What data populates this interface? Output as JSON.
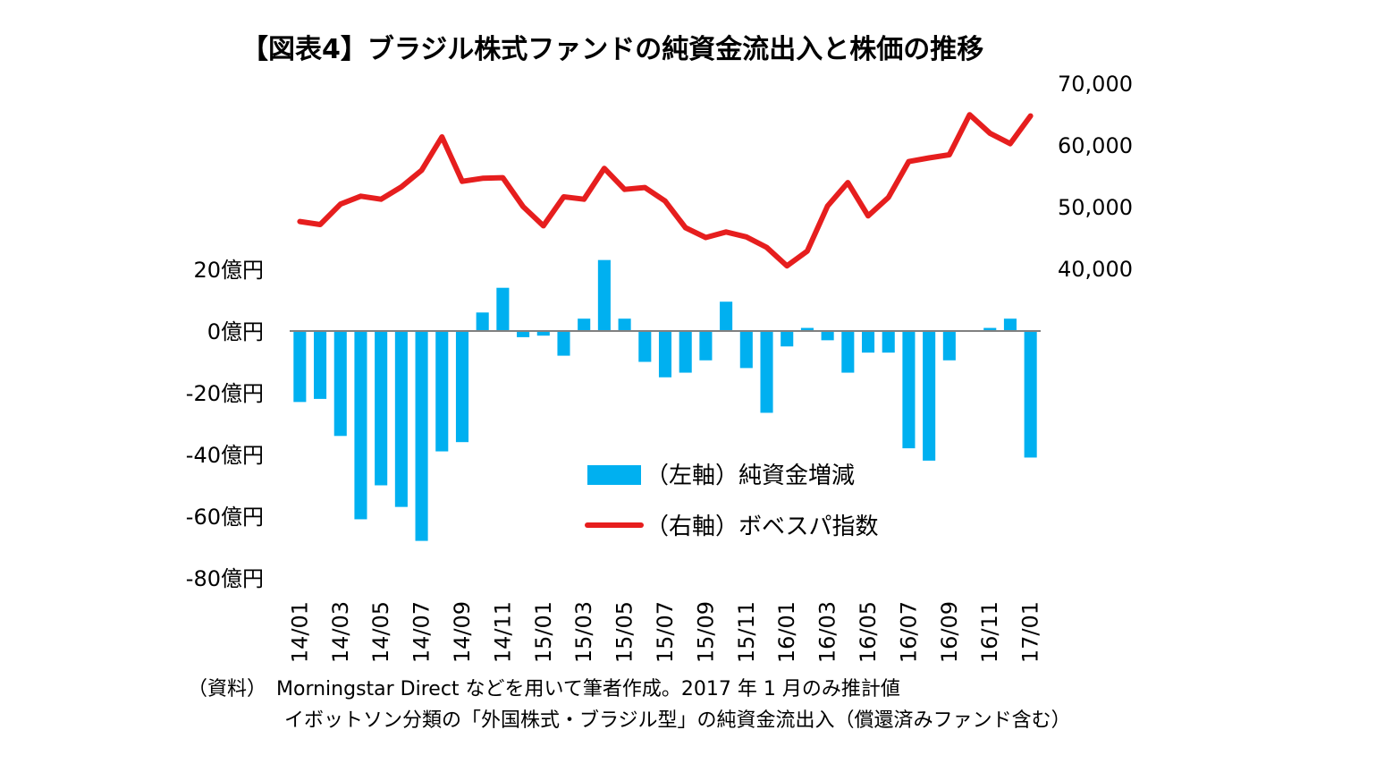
{
  "title": "【図表4】ブラジル株式ファンドの純資金流出入と株価の推移",
  "notes": [
    "（資料）　Morningstar Direct などを用いて筆者作成。2017 年 1 月のみ推計値",
    "イボットソン分類の「外国株式・ブラジル型」の純資金流出入（償還済みファンド含む）"
  ],
  "chart_data": {
    "type": "bar+line",
    "categories": [
      "14/01",
      "14/02",
      "14/03",
      "14/04",
      "14/05",
      "14/06",
      "14/07",
      "14/08",
      "14/09",
      "14/10",
      "14/11",
      "14/12",
      "15/01",
      "15/02",
      "15/03",
      "15/04",
      "15/05",
      "15/06",
      "15/07",
      "15/08",
      "15/09",
      "15/10",
      "15/11",
      "15/12",
      "16/01",
      "16/02",
      "16/03",
      "16/04",
      "16/05",
      "16/06",
      "16/07",
      "16/08",
      "16/09",
      "16/10",
      "16/11",
      "16/12",
      "17/01"
    ],
    "x_tick_labels": [
      "14/01",
      "14/03",
      "14/05",
      "14/07",
      "14/09",
      "14/11",
      "15/01",
      "15/03",
      "15/05",
      "15/07",
      "15/09",
      "15/11",
      "16/01",
      "16/03",
      "16/05",
      "16/07",
      "16/09",
      "16/11",
      "17/01"
    ],
    "series": [
      {
        "name": "（左軸）純資金増減",
        "type": "bar",
        "axis": "left",
        "color": "#00B0F0",
        "values": [
          -23,
          -22,
          -34,
          -61,
          -50,
          -57,
          -68,
          -39,
          -36,
          6,
          14,
          -2,
          -1.5,
          -8,
          4,
          23,
          4,
          -10,
          -15,
          -13.5,
          -9.5,
          9.5,
          -12,
          -26.5,
          -5,
          1,
          -3,
          -13.5,
          -7,
          -7,
          -38,
          -42,
          -9.5,
          0,
          1,
          4,
          -41
        ]
      },
      {
        "name": "（右軸）ボベスパ指数",
        "type": "line",
        "axis": "right",
        "color": "#E61E1E",
        "values": [
          47600,
          47100,
          50400,
          51700,
          51200,
          53200,
          55900,
          61300,
          54100,
          54600,
          54700,
          50000,
          46900,
          51600,
          51200,
          56200,
          52800,
          53100,
          50900,
          46600,
          45000,
          45900,
          45100,
          43400,
          40400,
          42800,
          50100,
          53900,
          48500,
          51500,
          57300,
          57900,
          58400,
          64900,
          61900,
          60200,
          64700
        ]
      }
    ],
    "left_axis": {
      "ticks": [
        20,
        0,
        -20,
        -40,
        -60,
        -80
      ],
      "tick_labels": [
        "20億円",
        "0億円",
        "-20億円",
        "-40億円",
        "-60億円",
        "-80億円"
      ],
      "range": [
        -80,
        20
      ]
    },
    "right_axis": {
      "ticks": [
        70000,
        60000,
        50000,
        40000
      ],
      "tick_labels": [
        "70,000",
        "60,000",
        "50,000",
        "40,000"
      ],
      "range": [
        40000,
        70000
      ]
    },
    "legend": {
      "placement": "inside-bottom-center"
    }
  }
}
